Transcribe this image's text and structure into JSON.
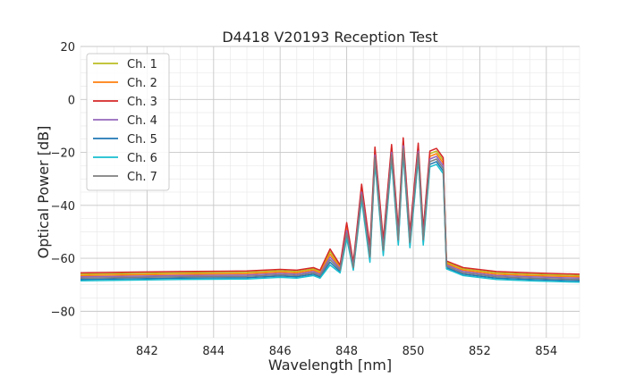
{
  "chart_data": {
    "type": "line",
    "title": "D4418 V20193 Reception Test",
    "xlabel": "Wavelength [nm]",
    "ylabel": "Optical Power [dB]",
    "xlim": [
      840,
      855
    ],
    "ylim": [
      -90,
      20
    ],
    "x_ticks": [
      842,
      844,
      846,
      848,
      850,
      852,
      854
    ],
    "y_ticks": [
      -80,
      -60,
      -40,
      -20,
      0,
      20
    ],
    "x_minor_step": 0.5,
    "y_minor_step": 5,
    "grid": true,
    "legend_position": "top-left",
    "base_profile": {
      "x": [
        840.0,
        843.0,
        845.0,
        846.0,
        846.5,
        847.0,
        847.2,
        847.5,
        847.8,
        848.0,
        848.2,
        848.45,
        848.7,
        848.85,
        849.1,
        849.35,
        849.55,
        849.7,
        849.9,
        850.15,
        850.3,
        850.5,
        850.7,
        850.9,
        851.0,
        851.5,
        852.5,
        853.5,
        855.0
      ],
      "y": [
        -66.5,
        -66.0,
        -65.8,
        -65.2,
        -65.5,
        -64.5,
        -65.5,
        -58.5,
        -63.5,
        -48.5,
        -62.5,
        -34.0,
        -57.5,
        -20.0,
        -55.0,
        -19.0,
        -51.0,
        -16.5,
        -52.0,
        -18.5,
        -51.0,
        -21.5,
        -20.5,
        -24.0,
        -62.0,
        -64.5,
        -66.0,
        -66.5,
        -67.0
      ]
    },
    "series": [
      {
        "name": "Ch. 1",
        "color": "#bcbd22",
        "offset": 0.5
      },
      {
        "name": "Ch. 2",
        "color": "#ff7f0e",
        "offset": 0.0
      },
      {
        "name": "Ch. 3",
        "color": "#d62728",
        "offset": 1.0
      },
      {
        "name": "Ch. 4",
        "color": "#9467bd",
        "offset": -0.5
      },
      {
        "name": "Ch. 5",
        "color": "#1f77b4",
        "offset": -1.5
      },
      {
        "name": "Ch. 6",
        "color": "#17becf",
        "offset": -2.0
      },
      {
        "name": "Ch. 7",
        "color": "#7f7f7f",
        "offset": -1.0
      }
    ]
  }
}
